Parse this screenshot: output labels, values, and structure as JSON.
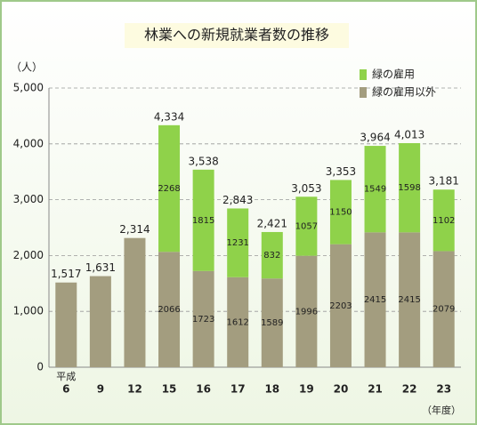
{
  "chart_data": {
    "type": "stacked_bar",
    "title": "林業への新規就業者数の推移",
    "y_unit": "（人）",
    "x_unit": "（年度）",
    "x_prefix": "平成",
    "categories": [
      "6",
      "9",
      "12",
      "15",
      "16",
      "17",
      "18",
      "19",
      "20",
      "21",
      "22",
      "23"
    ],
    "series": [
      {
        "name": "緑の雇用",
        "color": "#8fd24a",
        "values": [
          null,
          null,
          null,
          2268,
          1815,
          1231,
          832,
          1057,
          1150,
          1549,
          1598,
          1102
        ]
      },
      {
        "name": "緑の雇用以外",
        "color": "#a39d7f",
        "values": [
          1517,
          1631,
          2314,
          2066,
          1723,
          1612,
          1589,
          1996,
          2203,
          2415,
          2415,
          2079
        ]
      }
    ],
    "totals": [
      1517,
      1631,
      2314,
      4334,
      3538,
      2843,
      2421,
      3053,
      3353,
      3964,
      4013,
      3181
    ],
    "total_labels": [
      "1,517",
      "1,631",
      "2,314",
      "4,334",
      "3,538",
      "2,843",
      "2,421",
      "3,053",
      "3,353",
      "3,964",
      "4,013",
      "3,181"
    ],
    "ylim": [
      0,
      5000
    ],
    "yticks": [
      0,
      {
        "value": 1000,
        "label": "1,000"
      },
      {
        "value": 2000,
        "label": "2,000"
      },
      {
        "value": 3000,
        "label": "3,000"
      },
      {
        "value": 4000,
        "label": "4,000"
      },
      {
        "value": 5000,
        "label": "5,000"
      }
    ],
    "grid": true,
    "legend": "top-right"
  }
}
